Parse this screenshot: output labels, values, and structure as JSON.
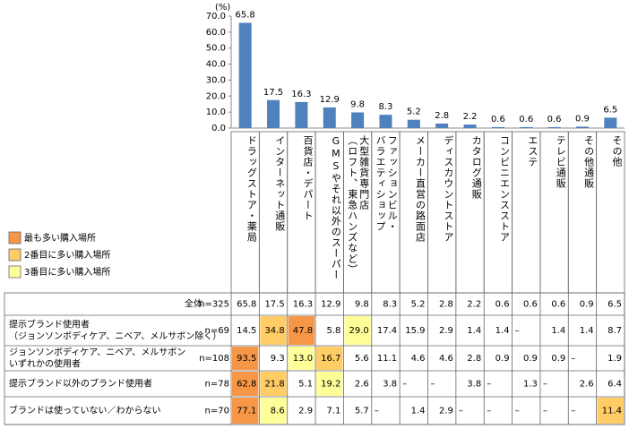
{
  "chart_data": {
    "type": "bar",
    "y_unit": "(%)",
    "categories": [
      "ドラッグストア・薬局",
      "インターネット通販",
      "百貨店・デパート",
      "GMSやそれ以外のスーパー",
      "大型雑貨専門店\n（ロフト、東急ハンズなど）",
      "ファッションビル・\nバラエティショップ",
      "メーカー直営の路面店",
      "ディスカウントストア",
      "カタログ通販",
      "コンビニエンスストア",
      "エステ",
      "テレビ通販",
      "その他通販",
      "その他"
    ],
    "values": [
      65.8,
      17.5,
      16.3,
      12.9,
      9.8,
      8.3,
      5.2,
      2.8,
      2.2,
      0.6,
      0.6,
      0.6,
      0.9,
      6.5
    ],
    "color": "#4f81bd",
    "ylim": [
      0,
      70
    ],
    "yticks": [
      {
        "value": 0,
        "label": "0.0"
      },
      {
        "value": 10,
        "label": "10.0"
      },
      {
        "value": 20,
        "label": "20.0"
      },
      {
        "value": 30,
        "label": "30.0"
      },
      {
        "value": 40,
        "label": "40.0"
      },
      {
        "value": 50,
        "label": "50.0"
      },
      {
        "value": 60,
        "label": "60.0"
      },
      {
        "value": 70,
        "label": "70.0"
      }
    ]
  },
  "legend": {
    "items": [
      {
        "label": "最も多い購入場所",
        "color": "#f79646"
      },
      {
        "label": "2番目に多い購入場所",
        "color": "#ffcc66"
      },
      {
        "label": "3番目に多い購入場所",
        "color": "#ffff99"
      }
    ]
  },
  "table": {
    "rows": [
      {
        "label": [
          "全体"
        ],
        "n": "n=325",
        "cells": [
          "65.8",
          "17.5",
          "16.3",
          "12.9",
          "9.8",
          "8.3",
          "5.2",
          "2.8",
          "2.2",
          "0.6",
          "0.6",
          "0.6",
          "0.9",
          "6.5"
        ]
      },
      {
        "label": [
          "提示ブランド使用者",
          "（ジョンソンボディケア、ニベア、メルサボン除く）"
        ],
        "n": "n=69",
        "cells": [
          "14.5",
          "34.8",
          "47.8",
          "5.8",
          "29.0",
          "17.4",
          "15.9",
          "2.9",
          "1.4",
          "1.4",
          "–",
          "1.4",
          "1.4",
          "8.7"
        ],
        "highlight": [
          2,
          1,
          4
        ]
      },
      {
        "label": [
          "ジョンソンボディケア、ニベア、メルサボン",
          "いずれかの使用者"
        ],
        "n": "n=108",
        "cells": [
          "93.5",
          "9.3",
          "13.0",
          "16.7",
          "5.6",
          "11.1",
          "4.6",
          "4.6",
          "2.8",
          "0.9",
          "0.9",
          "0.9",
          "–",
          "1.9"
        ],
        "highlight": [
          0,
          3,
          2
        ]
      },
      {
        "label": [
          "提示ブランド以外のブランド使用者"
        ],
        "n": "n=78",
        "cells": [
          "62.8",
          "21.8",
          "5.1",
          "19.2",
          "2.6",
          "3.8",
          "–",
          "–",
          "3.8",
          "–",
          "1.3",
          "–",
          "2.6",
          "6.4"
        ],
        "highlight": [
          0,
          1,
          3
        ]
      },
      {
        "label": [
          "ブランドは使っていない／わからない"
        ],
        "n": "n=70",
        "cells": [
          "77.1",
          "8.6",
          "2.9",
          "7.1",
          "5.7",
          "–",
          "1.4",
          "2.9",
          "–",
          "–",
          "–",
          "–",
          "–",
          "11.4"
        ],
        "highlight": [
          0,
          13,
          1
        ]
      }
    ]
  }
}
